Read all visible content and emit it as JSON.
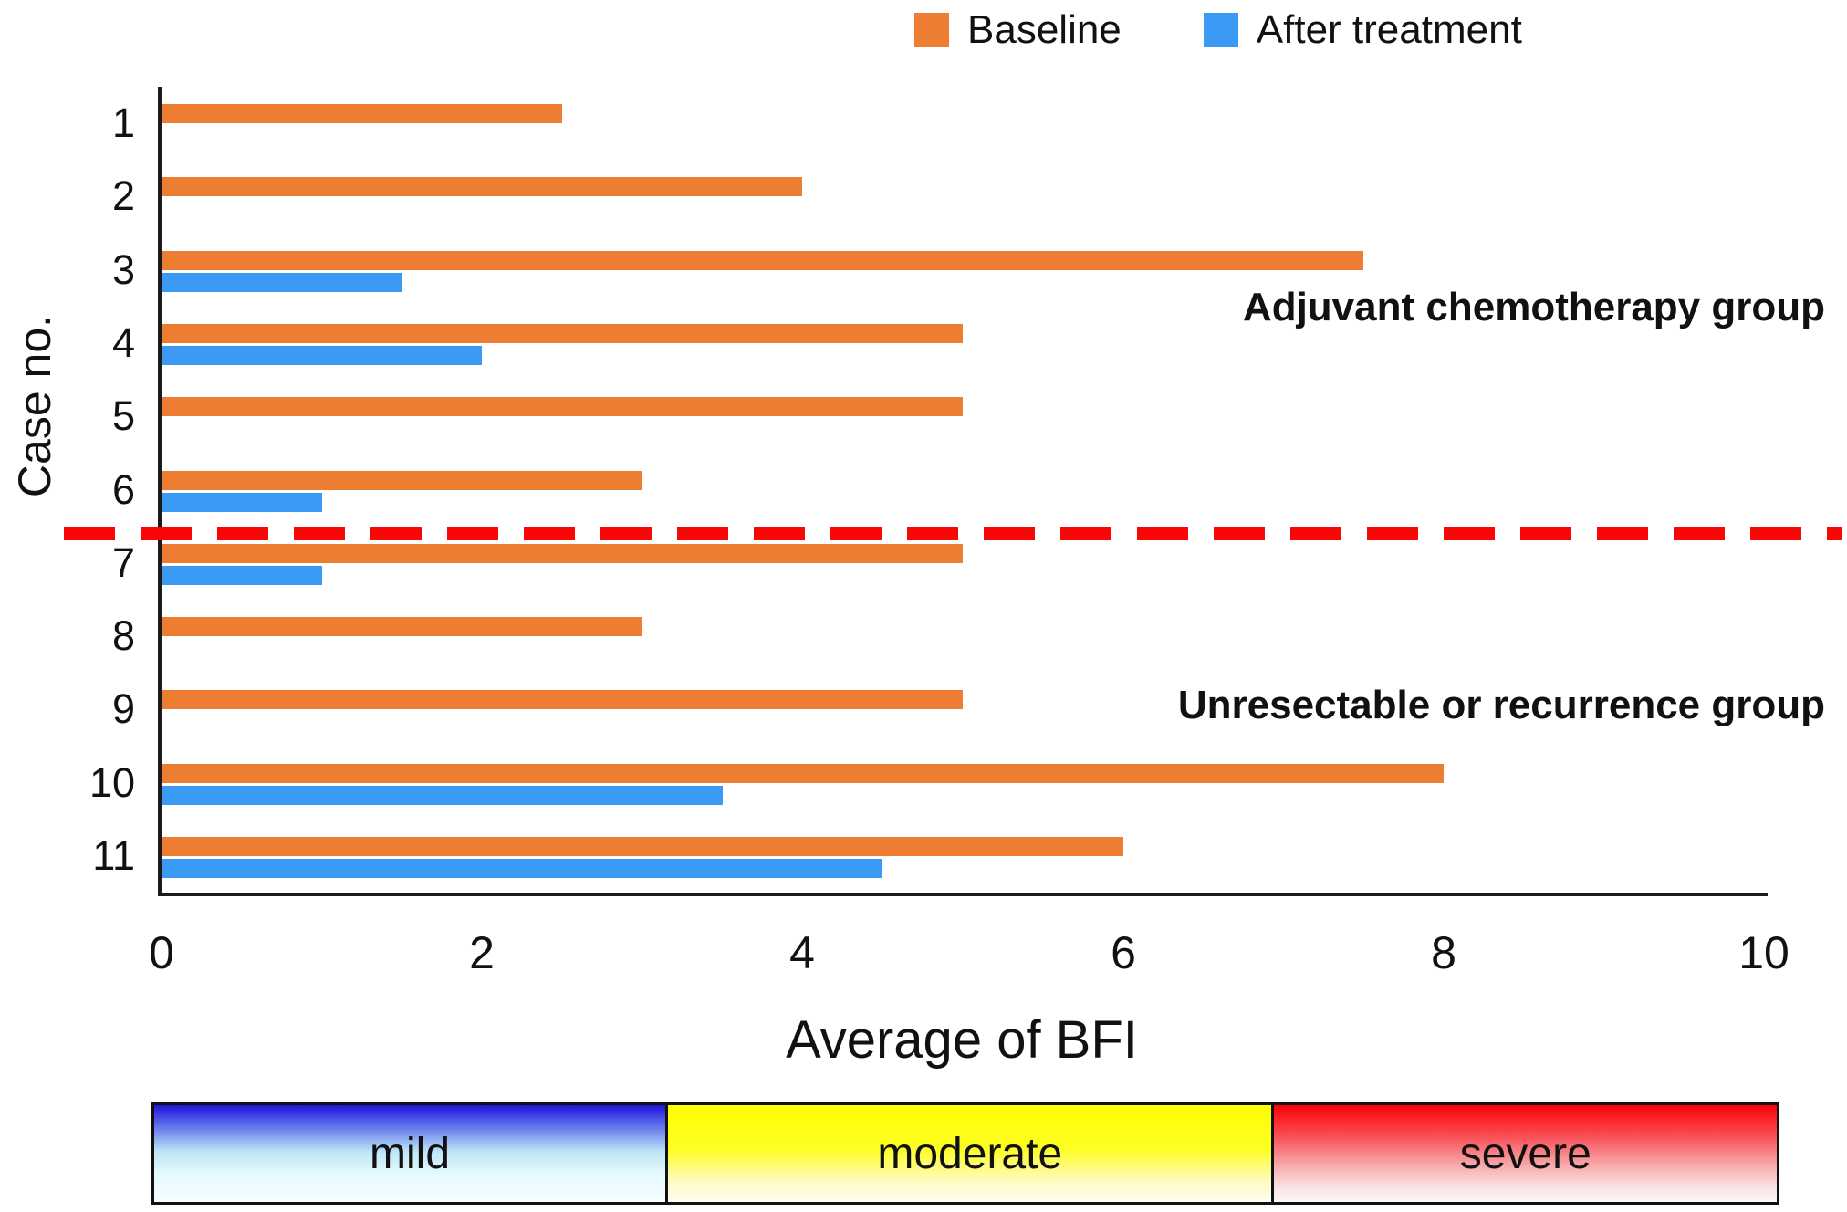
{
  "legend": {
    "items": [
      {
        "label": "Baseline",
        "color": "#ED7D31"
      },
      {
        "label": "After treatment",
        "color": "#3B9AF4"
      }
    ]
  },
  "y_axis_label": "Case no.",
  "x_axis_title": "Average of BFI",
  "group_labels": {
    "adjuvant": "Adjuvant chemotherapy group",
    "unresectable": "Unresectable or recurrence group"
  },
  "severity_scale": {
    "segments": [
      {
        "label": "mild",
        "top_color": "#2013DC"
      },
      {
        "label": "moderate",
        "top_color": "#FEFE02"
      },
      {
        "label": "severe",
        "top_color": "#FE0105"
      }
    ]
  },
  "chart_data": {
    "type": "bar",
    "orientation": "horizontal",
    "title": "Average of BFI",
    "ylabel": "Case no.",
    "categories": [
      "1",
      "2",
      "3",
      "4",
      "5",
      "6",
      "7",
      "8",
      "9",
      "10",
      "11"
    ],
    "series": [
      {
        "name": "Baseline",
        "color": "#ED7D31",
        "values": [
          2.5,
          4,
          7.5,
          5,
          5,
          3,
          5,
          3,
          5,
          8,
          6
        ]
      },
      {
        "name": "After treatment",
        "color": "#3B9AF4",
        "values": [
          null,
          null,
          1.5,
          2,
          null,
          1,
          1,
          null,
          null,
          3.5,
          4.5
        ]
      }
    ],
    "xlim": [
      0,
      10
    ],
    "xticks": [
      0,
      2,
      4,
      6,
      8,
      10
    ],
    "grid": false,
    "legend_position": "top",
    "separator": {
      "after_category": "6",
      "color": "#F90606",
      "style": "dashed"
    }
  }
}
